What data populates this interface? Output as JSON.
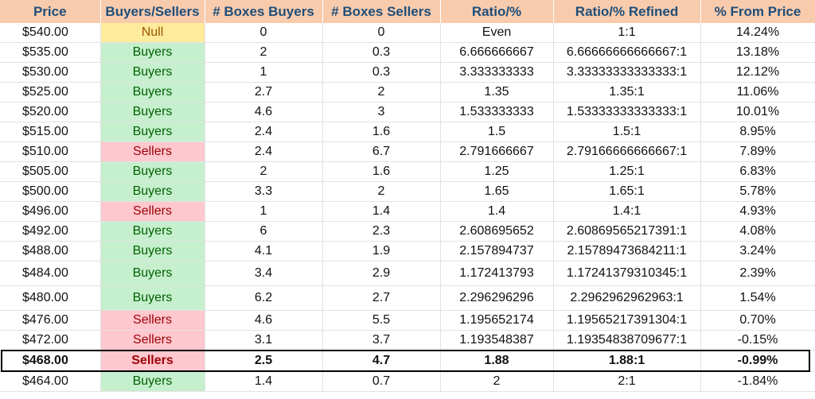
{
  "headers": [
    "Price",
    "Buyers/Sellers",
    "# Boxes Buyers",
    "# Boxes Sellers",
    "Ratio/%",
    "Ratio/% Refined",
    "% From Price"
  ],
  "rows": [
    [
      "$540.00",
      "Null",
      "0",
      "0",
      "Even",
      "1:1",
      "14.24%"
    ],
    [
      "$535.00",
      "Buyers",
      "2",
      "0.3",
      "6.666666667",
      "6.66666666666667:1",
      "13.18%"
    ],
    [
      "$530.00",
      "Buyers",
      "1",
      "0.3",
      "3.333333333",
      "3.33333333333333:1",
      "12.12%"
    ],
    [
      "$525.00",
      "Buyers",
      "2.7",
      "2",
      "1.35",
      "1.35:1",
      "11.06%"
    ],
    [
      "$520.00",
      "Buyers",
      "4.6",
      "3",
      "1.533333333",
      "1.53333333333333:1",
      "10.01%"
    ],
    [
      "$515.00",
      "Buyers",
      "2.4",
      "1.6",
      "1.5",
      "1.5:1",
      "8.95%"
    ],
    [
      "$510.00",
      "Sellers",
      "2.4",
      "6.7",
      "2.791666667",
      "2.79166666666667:1",
      "7.89%"
    ],
    [
      "$505.00",
      "Buyers",
      "2",
      "1.6",
      "1.25",
      "1.25:1",
      "6.83%"
    ],
    [
      "$500.00",
      "Buyers",
      "3.3",
      "2",
      "1.65",
      "1.65:1",
      "5.78%"
    ],
    [
      "$496.00",
      "Sellers",
      "1",
      "1.4",
      "1.4",
      "1.4:1",
      "4.93%"
    ],
    [
      "$492.00",
      "Buyers",
      "6",
      "2.3",
      "2.608695652",
      "2.60869565217391:1",
      "4.08%"
    ],
    [
      "$488.00",
      "Buyers",
      "4.1",
      "1.9",
      "2.157894737",
      "2.15789473684211:1",
      "3.24%"
    ],
    [
      "$484.00",
      "Buyers",
      "3.4",
      "2.9",
      "1.172413793",
      "1.17241379310345:1",
      "2.39%"
    ],
    [
      "$480.00",
      "Buyers",
      "6.2",
      "2.7",
      "2.296296296",
      "2.2962962962963:1",
      "1.54%"
    ],
    [
      "$476.00",
      "Sellers",
      "4.6",
      "5.5",
      "1.195652174",
      "1.19565217391304:1",
      "0.70%"
    ],
    [
      "$472.00",
      "Sellers",
      "3.1",
      "3.7",
      "1.193548387",
      "1.19354838709677:1",
      "-0.15%"
    ],
    [
      "$468.00",
      "Sellers",
      "2.5",
      "4.7",
      "1.88",
      "1.88:1",
      "-0.99%"
    ],
    [
      "$464.00",
      "Buyers",
      "1.4",
      "0.7",
      "2",
      "2:1",
      "-1.84%"
    ]
  ],
  "highlight_row": 16,
  "tall_rows": [
    12,
    13
  ],
  "colors": {
    "header_bg": "#f8cbad",
    "header_text": "#1f4e79",
    "buyers_bg": "#c6efce",
    "buyers_text": "#006100",
    "sellers_bg": "#ffc7ce",
    "sellers_text": "#9c0006",
    "null_bg": "#ffeb9c",
    "null_text": "#9c5700"
  }
}
